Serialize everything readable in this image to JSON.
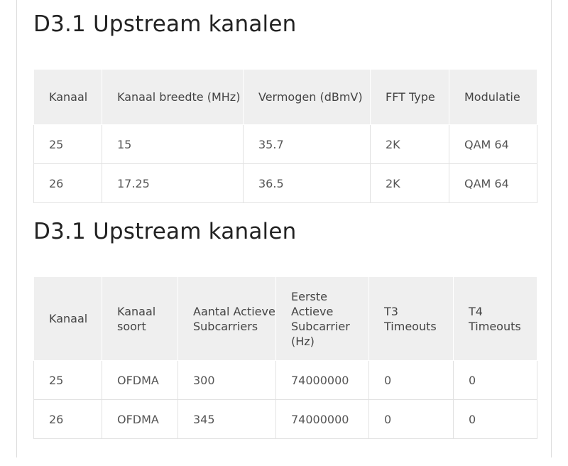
{
  "section1": {
    "title": "D3.1 Upstream kanalen",
    "headers": [
      "Kanaal",
      "Kanaal breedte (MHz)",
      "Vermogen (dBmV)",
      "FFT Type",
      "Modulatie"
    ],
    "rows": [
      [
        "25",
        "15",
        "35.7",
        "2K",
        "QAM 64"
      ],
      [
        "26",
        "17.25",
        "36.5",
        "2K",
        "QAM 64"
      ]
    ]
  },
  "section2": {
    "title": "D3.1 Upstream kanalen",
    "headers": [
      "Kanaal",
      "Kanaal soort",
      "Aantal Actieve Subcarriers",
      "Eerste Actieve Subcarrier (Hz)",
      "T3 Timeouts",
      "T4 Timeouts"
    ],
    "rows": [
      [
        "25",
        "OFDMA",
        "300",
        "74000000",
        "0",
        "0"
      ],
      [
        "26",
        "OFDMA",
        "345",
        "74000000",
        "0",
        "0"
      ]
    ]
  }
}
